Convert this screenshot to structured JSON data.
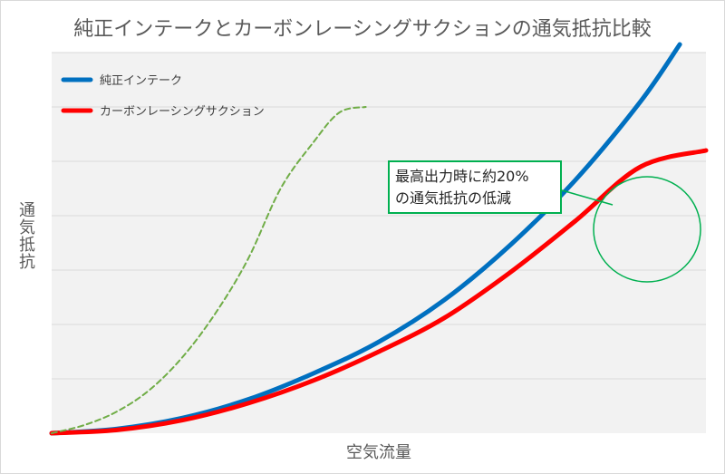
{
  "chart_data": {
    "type": "line",
    "title": "純正インテークとカーボンレーシングサクションの通気抵抗比較",
    "xlabel": "空気流量",
    "ylabel": "通気抵抗",
    "grid": true,
    "legend_placement": "top-left",
    "xlim": [
      0,
      100
    ],
    "ylim": [
      0,
      7
    ],
    "series": [
      {
        "name": "純正インテーク",
        "color": "#0070c0",
        "style": "solid",
        "points": [
          [
            0,
            0
          ],
          [
            10,
            0.08
          ],
          [
            20,
            0.28
          ],
          [
            30,
            0.62
          ],
          [
            40,
            1.1
          ],
          [
            50,
            1.68
          ],
          [
            60,
            2.45
          ],
          [
            70,
            3.45
          ],
          [
            80,
            4.65
          ],
          [
            90,
            6.1
          ],
          [
            96,
            7.15
          ]
        ]
      },
      {
        "name": "カーボンレーシングサクション",
        "color": "#ff0000",
        "style": "solid",
        "points": [
          [
            0,
            0
          ],
          [
            10,
            0.06
          ],
          [
            20,
            0.24
          ],
          [
            30,
            0.55
          ],
          [
            40,
            0.97
          ],
          [
            50,
            1.5
          ],
          [
            60,
            2.12
          ],
          [
            70,
            2.95
          ],
          [
            80,
            3.9
          ],
          [
            90,
            4.9
          ],
          [
            100,
            5.2
          ]
        ]
      },
      {
        "color": "#70ad47",
        "style": "dashed",
        "points": [
          [
            0,
            0
          ],
          [
            5,
            0.15
          ],
          [
            10,
            0.4
          ],
          [
            15,
            0.8
          ],
          [
            20,
            1.4
          ],
          [
            25,
            2.2
          ],
          [
            30,
            3.2
          ],
          [
            35,
            4.5
          ],
          [
            40,
            5.35
          ],
          [
            44,
            5.9
          ],
          [
            48,
            6.0
          ]
        ]
      }
    ],
    "annotation": {
      "lines": [
        "最高出力時に約20%",
        "の通気抵抗の低減"
      ],
      "color": "#00b050"
    }
  }
}
